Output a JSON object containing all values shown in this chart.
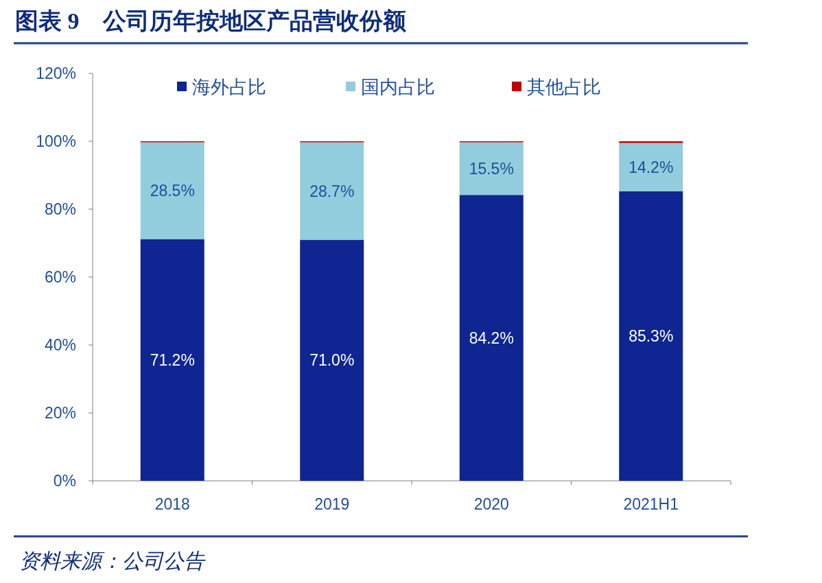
{
  "chart_data": {
    "type": "bar",
    "stacked": true,
    "title": "图表 9　公司历年按地区产品营收份额",
    "categories": [
      "2018",
      "2019",
      "2020",
      "2021H1"
    ],
    "series": [
      {
        "name": "海外占比",
        "color": "#0f2591",
        "values": [
          71.2,
          71.0,
          84.2,
          85.3
        ],
        "value_labels": [
          "71.2%",
          "71.0%",
          "84.2%",
          "85.3%"
        ]
      },
      {
        "name": "国内占比",
        "color": "#92cddd",
        "values": [
          28.5,
          28.7,
          15.5,
          14.2
        ],
        "value_labels": [
          "28.5%",
          "28.7%",
          "15.5%",
          "14.2%"
        ]
      },
      {
        "name": "其他占比",
        "color": "#c00000",
        "values": [
          0.3,
          0.3,
          0.3,
          0.5
        ]
      }
    ],
    "ylim": [
      0,
      120
    ],
    "yticks": [
      {
        "value": 0,
        "label": "0%"
      },
      {
        "value": 20,
        "label": "20%"
      },
      {
        "value": 40,
        "label": "40%"
      },
      {
        "value": 60,
        "label": "60%"
      },
      {
        "value": 80,
        "label": "80%"
      },
      {
        "value": 100,
        "label": "100%"
      },
      {
        "value": 120,
        "label": "120%"
      }
    ],
    "legend": "top",
    "grid": false,
    "annotations": [
      "资料来源：公司公告"
    ]
  }
}
